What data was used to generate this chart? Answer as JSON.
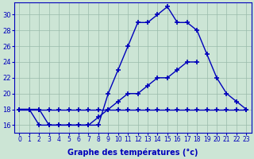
{
  "xlabel": "Graphe des températures (°c)",
  "hours": [
    0,
    1,
    2,
    3,
    4,
    5,
    6,
    7,
    8,
    9,
    10,
    11,
    12,
    13,
    14,
    15,
    16,
    17,
    18,
    19,
    20,
    21,
    22,
    23
  ],
  "line1": [
    18,
    18,
    16,
    16,
    16,
    16,
    16,
    16,
    16,
    20,
    23,
    26,
    29,
    29,
    30,
    31,
    29,
    29,
    28,
    25,
    22,
    20,
    19,
    18
  ],
  "line2": [
    18,
    18,
    18,
    16,
    16,
    16,
    16,
    16,
    17,
    18,
    19,
    20,
    20,
    21,
    22,
    22,
    23,
    24,
    24,
    null,
    22,
    null,
    null,
    18
  ],
  "line3": [
    18,
    18,
    18,
    18,
    18,
    18,
    18,
    18,
    18,
    18,
    18,
    18,
    18,
    18,
    18,
    18,
    18,
    18,
    18,
    18,
    18,
    18,
    18,
    18
  ],
  "bg_color": "#cce5d5",
  "line_color": "#0000bb",
  "grid_color": "#99bbaa",
  "ylim": [
    15.0,
    31.5
  ],
  "yticks": [
    16,
    18,
    20,
    22,
    24,
    26,
    28,
    30
  ],
  "xlim": [
    -0.5,
    23.5
  ],
  "line_width": 1.0,
  "marker": "+",
  "marker_size": 4,
  "marker_ew": 1.2,
  "xlabel_fontsize": 7,
  "tick_fontsize": 5.5,
  "ytick_fontsize": 6.0
}
